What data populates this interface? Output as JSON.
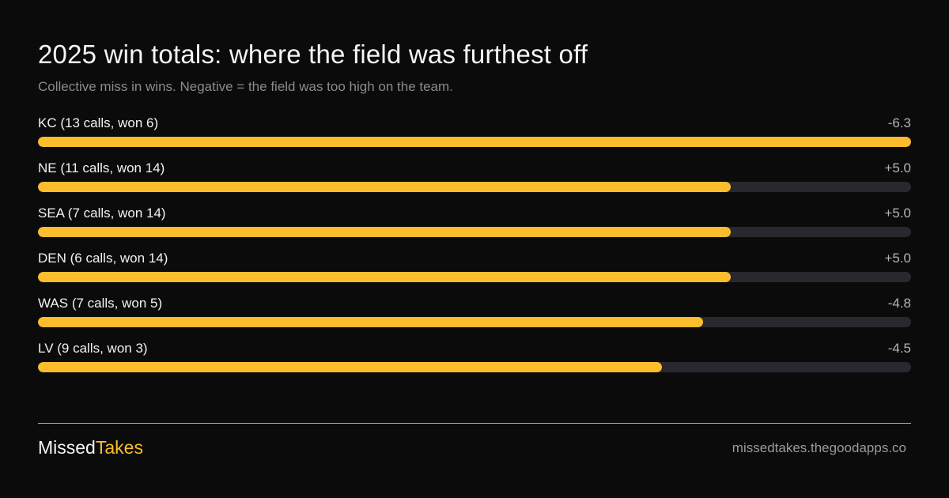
{
  "chart_data": {
    "type": "bar",
    "title": "2025 win totals: where the field was furthest off",
    "subtitle": "Collective miss in wins. Negative = the field was too high on the team.",
    "categories": [
      "KC (13 calls, won 6)",
      "NE (11 calls, won 14)",
      "SEA (7 calls, won 14)",
      "DEN (6 calls, won 14)",
      "WAS (7 calls, won 5)",
      "LV (9 calls, won 3)"
    ],
    "values": [
      -6.3,
      5.0,
      5.0,
      5.0,
      -4.8,
      -4.5
    ],
    "value_labels": [
      "-6.3",
      "+5.0",
      "+5.0",
      "+5.0",
      "-4.8",
      "-4.5"
    ],
    "bar_scale_max_abs": 6.3,
    "grid": false,
    "legend": "none",
    "colors": {
      "bar": "#fbbd2b",
      "track": "#2a282e",
      "background": "#0b0b0b"
    }
  },
  "footer": {
    "brand_part1": "Missed",
    "brand_part2": "Takes",
    "site": "missedtakes.thegoodapps.co"
  }
}
